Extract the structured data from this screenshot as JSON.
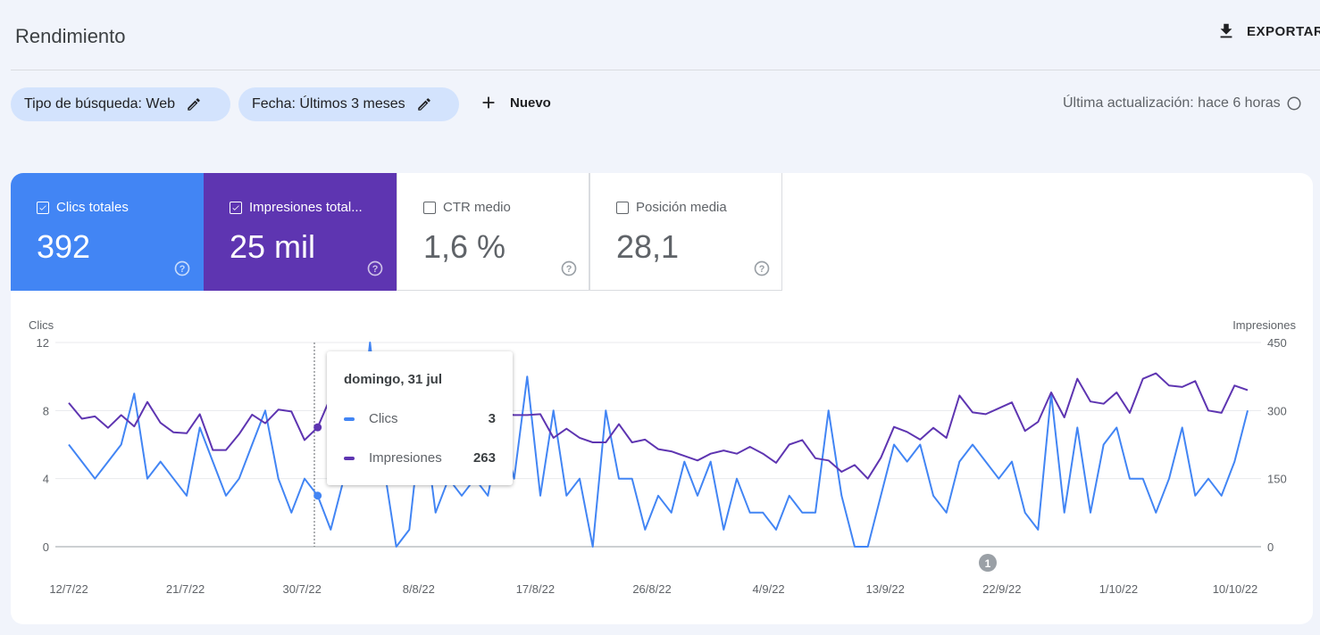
{
  "header": {
    "title": "Rendimiento",
    "export_label": "EXPORTAR"
  },
  "filters": {
    "search_type": "Tipo de búsqueda: Web",
    "date": "Fecha: Últimos 3 meses",
    "new_label": "Nuevo",
    "last_update": "Última actualización: hace 6 horas"
  },
  "metrics": [
    {
      "label": "Clics totales",
      "value": "392",
      "checked": true,
      "color": "#4285f4"
    },
    {
      "label": "Impresiones total...",
      "value": "25 mil",
      "checked": true,
      "color": "#5e35b1"
    },
    {
      "label": "CTR medio",
      "value": "1,6 %",
      "checked": false
    },
    {
      "label": "Posición media",
      "value": "28,1",
      "checked": false
    }
  ],
  "tooltip": {
    "date": "domingo, 31 jul",
    "rows": [
      {
        "label": "Clics",
        "value": "3",
        "color": "#4285f4"
      },
      {
        "label": "Impresiones",
        "value": "263",
        "color": "#5e35b1"
      }
    ]
  },
  "chart_data": {
    "type": "line",
    "left_axis_label": "Clics",
    "right_axis_label": "Impresiones",
    "left_ylim": [
      0,
      12
    ],
    "right_ylim": [
      0,
      450
    ],
    "left_ticks": [
      "12",
      "8",
      "4",
      "0"
    ],
    "right_ticks": [
      "450",
      "300",
      "150",
      "0"
    ],
    "x_tick_labels": [
      "12/7/22",
      "21/7/22",
      "30/7/22",
      "8/8/22",
      "17/8/22",
      "26/8/22",
      "4/9/22",
      "13/9/22",
      "22/9/22",
      "1/10/22",
      "10/10/22"
    ],
    "annotation": "1",
    "grid": true,
    "series": [
      {
        "name": "Clics",
        "axis": "left",
        "color": "#4285f4",
        "values": [
          6,
          5,
          4,
          5,
          6,
          9,
          4,
          5,
          4,
          3,
          7,
          5,
          3,
          4,
          6,
          8,
          4,
          2,
          4,
          3,
          1,
          4,
          5,
          12,
          5,
          0,
          1,
          8,
          2,
          4,
          3,
          4,
          3,
          7,
          4,
          10,
          3,
          8,
          3,
          4,
          0,
          8,
          4,
          4,
          1,
          3,
          2,
          5,
          3,
          5,
          1,
          4,
          2,
          2,
          1,
          3,
          2,
          2,
          8,
          3,
          0,
          0,
          3,
          6,
          5,
          6,
          3,
          2,
          5,
          6,
          5,
          4,
          5,
          2,
          1,
          9,
          2,
          7,
          2,
          6,
          7,
          4,
          4,
          2,
          4,
          7,
          3,
          4,
          3,
          5,
          8
        ]
      },
      {
        "name": "Impresiones",
        "axis": "right",
        "color": "#5e35b1",
        "values": [
          317,
          282,
          287,
          262,
          290,
          265,
          319,
          273,
          252,
          250,
          292,
          213,
          213,
          248,
          291,
          272,
          302,
          298,
          235,
          263,
          330,
          320,
          328,
          340,
          320,
          300,
          330,
          270,
          280,
          300,
          310,
          300,
          295,
          293,
          290,
          290,
          292,
          240,
          260,
          240,
          230,
          230,
          270,
          230,
          236,
          215,
          210,
          200,
          190,
          205,
          212,
          205,
          220,
          205,
          185,
          225,
          235,
          195,
          190,
          165,
          180,
          150,
          196,
          264,
          253,
          236,
          262,
          240,
          333,
          296,
          292,
          305,
          318,
          255,
          275,
          340,
          285,
          370,
          320,
          315,
          340,
          295,
          370,
          382,
          355,
          352,
          365,
          300,
          295,
          355,
          345
        ]
      }
    ]
  }
}
